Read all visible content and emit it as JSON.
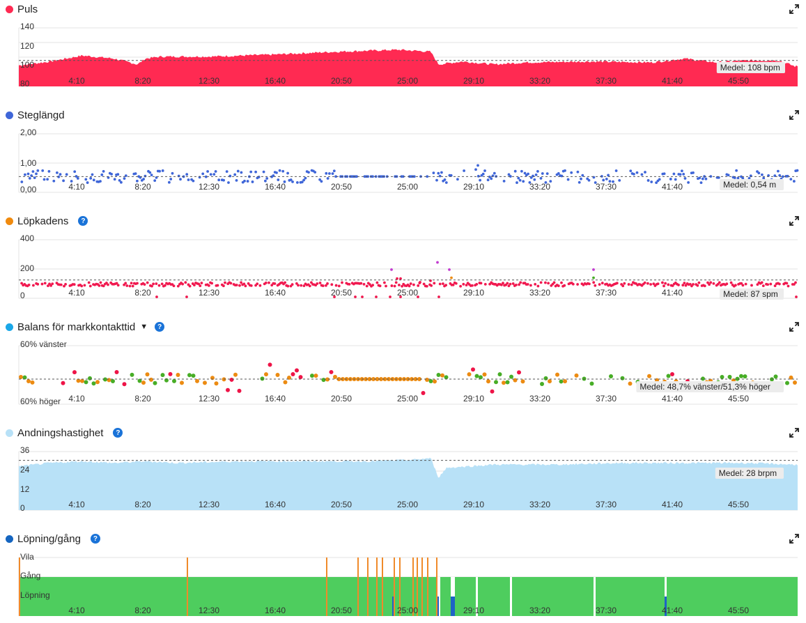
{
  "panels": {
    "puls": {
      "title": "Puls",
      "color": "#ff2a52",
      "yticks": [
        "140",
        "120",
        "100",
        "80"
      ],
      "ymin": 80,
      "ymax": 140,
      "avg_value": 108,
      "avg_label": "Medel: 108 bpm",
      "icon": "expand-icon"
    },
    "steg": {
      "title": "Steglängd",
      "color": "#3f66d8",
      "yticks": [
        "2,00",
        "1,00",
        "0,00"
      ],
      "ymin": 0,
      "ymax": 2,
      "avg_value": 0.54,
      "avg_label": "Medel: 0,54 m",
      "icon": "expand-icon"
    },
    "kadens": {
      "title": "Löpkadens",
      "color": "#f08a0e",
      "yticks": [
        "400",
        "200",
        "0"
      ],
      "ymin": 0,
      "ymax": 400,
      "avg_value": 87,
      "avg_label": "Medel: 87 spm",
      "icon": "expand-icon"
    },
    "balans": {
      "title": "Balans för markkontakttid",
      "color": "#1aa7e8",
      "yticks": [
        "60% vänster",
        "60% höger"
      ],
      "avg_label": "Medel: 48,7% vänster/51,3% höger",
      "icon": "expand-icon"
    },
    "andning": {
      "title": "Andningshastighet",
      "color": "#b8e1f7",
      "yticks": [
        "36",
        "24",
        "12",
        "0"
      ],
      "ymin": 0,
      "ymax": 36,
      "avg_value": 28,
      "avg_label": "Medel: 28 brpm",
      "icon": "expand-icon"
    },
    "lopning": {
      "title": "Löpning/gång",
      "color": "#1565c0",
      "yticks": [
        "Vila",
        "Gång",
        "Löpning"
      ],
      "icon": "expand-icon"
    }
  },
  "x_ticks": [
    "4:10",
    "8:20",
    "12:30",
    "16:40",
    "20:50",
    "25:00",
    "29:10",
    "33:20",
    "37:30",
    "41:40",
    "45:50"
  ],
  "colors": {
    "cadence_dot": "#f0194f",
    "cadence_outlier": "#c23bd0",
    "balance_red": "#ee1447",
    "balance_orange": "#ec8b12",
    "balance_green": "#47ad26",
    "walk_run_green": "#4ecd5e",
    "walk_orange": "#f08a2a",
    "rest_blue": "#1e63c6"
  },
  "chart_data": [
    {
      "type": "area",
      "title": "Puls",
      "x_unit": "mm:ss",
      "xlim": [
        "0:00",
        "49:10"
      ],
      "ylim": [
        80,
        140
      ],
      "x_minutes": [
        0,
        2,
        4,
        6,
        7.5,
        8,
        9,
        12,
        16,
        20,
        24,
        26,
        26.5,
        28,
        30,
        32,
        36,
        40,
        42,
        44,
        46,
        48,
        49
      ],
      "values": [
        103,
        107,
        113,
        110,
        104,
        110,
        112,
        112,
        114,
        117,
        119,
        117,
        104,
        107,
        104,
        106,
        107,
        106,
        110,
        106,
        108,
        108,
        102
      ],
      "average": 108
    },
    {
      "type": "scatter",
      "title": "Steglängd",
      "ylim": [
        0,
        2
      ],
      "typical_range": [
        0.35,
        0.85
      ],
      "average": 0.54
    },
    {
      "type": "scatter",
      "title": "Löpkadens",
      "ylim": [
        0,
        400
      ],
      "typical_range": [
        75,
        110
      ],
      "average": 87
    },
    {
      "type": "scatter",
      "title": "Balans för markkontakttid",
      "ylim": [
        "60% höger",
        "60% vänster"
      ],
      "average": "48,7% vänster/51,3% höger"
    },
    {
      "type": "area",
      "title": "Andningshastighet",
      "ylim": [
        0,
        36
      ],
      "x_minutes": [
        0,
        2,
        4,
        6,
        8,
        10,
        14,
        18,
        22,
        25,
        26,
        26.5,
        27,
        30,
        34,
        38,
        42,
        46,
        49
      ],
      "values": [
        27,
        29,
        30,
        29,
        30,
        29,
        30,
        30,
        30,
        31,
        32,
        20,
        26,
        28,
        28,
        29,
        29,
        29,
        28
      ],
      "average": 28
    },
    {
      "type": "bar",
      "title": "Löpning/gång",
      "categories": [
        "Vila",
        "Gång",
        "Löpning"
      ]
    }
  ]
}
